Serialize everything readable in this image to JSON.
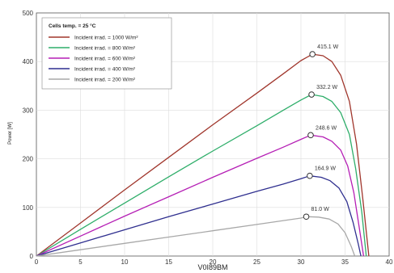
{
  "chart_data": {
    "type": "line",
    "xlabel": "V0I89BM",
    "ylabel": "Power [W]",
    "xlim": [
      0,
      40
    ],
    "ylim": [
      0,
      500
    ],
    "x_ticks": [
      "0",
      "5",
      "10",
      "15",
      "20",
      "25",
      "30",
      "35",
      "40"
    ],
    "y_ticks": [
      "0",
      "100",
      "200",
      "300",
      "400",
      "500"
    ],
    "grid": true,
    "legend_title": "Cells temp. = 25 °C",
    "legend_position": "top-left",
    "series": [
      {
        "name": "Incident irrad. = 1000 W/m²",
        "color": "#a0362c",
        "peak_label": "415.1 W",
        "mpp": [
          31.3,
          415.1
        ],
        "points": [
          [
            0,
            0
          ],
          [
            5,
            68
          ],
          [
            10,
            136
          ],
          [
            15,
            203
          ],
          [
            20,
            270
          ],
          [
            25,
            335
          ],
          [
            28,
            375
          ],
          [
            30,
            402
          ],
          [
            31.3,
            415.1
          ],
          [
            32.5,
            412
          ],
          [
            33.5,
            400
          ],
          [
            34.5,
            372
          ],
          [
            35.5,
            318
          ],
          [
            36.3,
            230
          ],
          [
            37,
            120
          ],
          [
            37.7,
            0
          ]
        ]
      },
      {
        "name": "Incident irrad. = 800 W/m²",
        "color": "#2fae6a",
        "peak_label": "332.2 W",
        "mpp": [
          31.2,
          332.2
        ],
        "points": [
          [
            0,
            0
          ],
          [
            5,
            55
          ],
          [
            10,
            109
          ],
          [
            15,
            163
          ],
          [
            20,
            216
          ],
          [
            25,
            268
          ],
          [
            28,
            300
          ],
          [
            30,
            321
          ],
          [
            31.2,
            332.2
          ],
          [
            32.5,
            328
          ],
          [
            33.5,
            318
          ],
          [
            34.5,
            295
          ],
          [
            35.5,
            250
          ],
          [
            36.2,
            180
          ],
          [
            36.9,
            90
          ],
          [
            37.4,
            0
          ]
        ]
      },
      {
        "name": "Incident irrad. = 600 W/m²",
        "color": "#b51fb5",
        "peak_label": "248.6 W",
        "mpp": [
          31.1,
          248.6
        ],
        "points": [
          [
            0,
            0
          ],
          [
            5,
            41
          ],
          [
            10,
            82
          ],
          [
            15,
            122
          ],
          [
            20,
            162
          ],
          [
            25,
            201
          ],
          [
            28,
            224
          ],
          [
            30,
            240
          ],
          [
            31.1,
            248.6
          ],
          [
            32.5,
            245
          ],
          [
            33.5,
            236
          ],
          [
            34.5,
            218
          ],
          [
            35.3,
            185
          ],
          [
            36,
            130
          ],
          [
            36.6,
            60
          ],
          [
            37.1,
            0
          ]
        ]
      },
      {
        "name": "Incident irrad. = 400 W/m²",
        "color": "#2f2f8f",
        "peak_label": "164.9 W",
        "mpp": [
          31.0,
          164.9
        ],
        "points": [
          [
            0,
            0
          ],
          [
            5,
            27
          ],
          [
            10,
            54
          ],
          [
            15,
            81
          ],
          [
            20,
            107
          ],
          [
            25,
            133
          ],
          [
            28,
            148
          ],
          [
            30,
            159
          ],
          [
            31.0,
            164.9
          ],
          [
            32.3,
            162
          ],
          [
            33.3,
            155
          ],
          [
            34.3,
            140
          ],
          [
            35.2,
            112
          ],
          [
            35.9,
            70
          ],
          [
            36.5,
            25
          ],
          [
            36.8,
            0
          ]
        ]
      },
      {
        "name": "Incident irrad. = 200 W/m²",
        "color": "#a8a8a8",
        "peak_label": "81.0 W",
        "mpp": [
          30.6,
          81.0
        ],
        "points": [
          [
            0,
            0
          ],
          [
            5,
            13
          ],
          [
            10,
            26
          ],
          [
            15,
            39
          ],
          [
            20,
            52
          ],
          [
            25,
            65
          ],
          [
            28,
            73
          ],
          [
            30,
            78
          ],
          [
            30.6,
            81.0
          ],
          [
            32,
            80
          ],
          [
            33.2,
            76
          ],
          [
            34.2,
            66
          ],
          [
            35,
            48
          ],
          [
            35.7,
            20
          ],
          [
            36.1,
            0
          ]
        ]
      }
    ]
  }
}
